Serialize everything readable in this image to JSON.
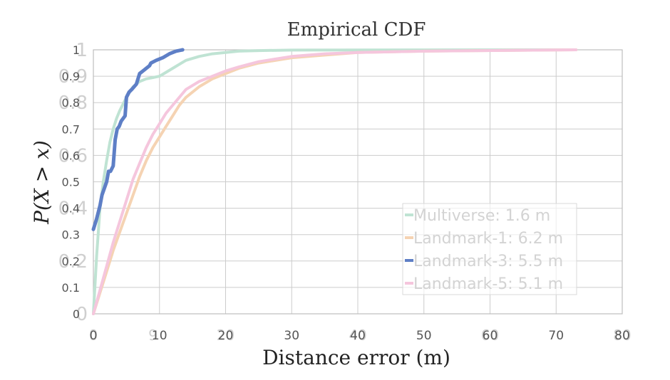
{
  "chart_data": {
    "type": "line",
    "title": "Empirical CDF",
    "xlabel": "Distance error (m)",
    "ylabel": "P(X > x)",
    "xlim": [
      0,
      80
    ],
    "ylim": [
      0,
      1
    ],
    "x_ticks": [
      "0",
      "10",
      "20",
      "30",
      "40",
      "50",
      "60",
      "70",
      "80"
    ],
    "y_ticks": [
      "0",
      "0.1",
      "0.2",
      "0.3",
      "0.4",
      "0.5",
      "0.6",
      "0.7",
      "0.8",
      "0.9",
      "1"
    ],
    "ghost_x_ticks": [
      "0",
      "9",
      "20",
      "40",
      "60",
      "80"
    ],
    "ghost_y_ticks": [
      "0",
      "0.2",
      "0.4",
      "0.6",
      "0.8",
      "0.9",
      "1"
    ],
    "grid": true,
    "legend_position": "lower-right",
    "series": [
      {
        "name": "Multiverse: 1.6 m",
        "color": "#bfe3d3",
        "x": [
          0,
          0.5,
          1,
          1.5,
          2,
          2.5,
          3,
          3.5,
          4,
          5,
          6,
          7,
          8,
          9,
          10,
          12,
          14,
          16,
          18,
          20,
          22,
          25,
          30,
          73
        ],
        "y": [
          0,
          0.22,
          0.4,
          0.5,
          0.58,
          0.65,
          0.7,
          0.74,
          0.77,
          0.82,
          0.86,
          0.88,
          0.89,
          0.895,
          0.9,
          0.93,
          0.96,
          0.975,
          0.985,
          0.99,
          0.995,
          0.997,
          0.999,
          1
        ]
      },
      {
        "name": "Landmark-1: 6.2 m",
        "color": "#f5d3b3",
        "x": [
          0,
          1,
          2,
          3,
          4,
          5,
          6,
          7,
          8,
          9,
          10,
          11,
          12,
          13,
          14,
          16,
          18,
          20,
          22,
          25,
          30,
          35,
          40,
          50,
          73
        ],
        "y": [
          0,
          0.08,
          0.16,
          0.24,
          0.31,
          0.38,
          0.45,
          0.52,
          0.58,
          0.63,
          0.67,
          0.71,
          0.75,
          0.79,
          0.82,
          0.86,
          0.89,
          0.91,
          0.93,
          0.95,
          0.97,
          0.98,
          0.99,
          0.995,
          1
        ]
      },
      {
        "name": "Landmark-3: 5.5 m",
        "color": "#5e7fc6",
        "x": [
          0,
          0.5,
          1,
          1.3,
          2,
          2.3,
          2.6,
          3.0,
          3.3,
          3.6,
          3.9,
          4.2,
          4.8,
          5.0,
          5.4,
          5.8,
          6.5,
          7.0,
          7.5,
          8.5,
          8.7,
          9.5,
          10.5,
          11.5,
          12.5,
          13.5
        ],
        "y": [
          0.32,
          0.36,
          0.41,
          0.45,
          0.5,
          0.54,
          0.54,
          0.56,
          0.66,
          0.7,
          0.71,
          0.73,
          0.75,
          0.82,
          0.84,
          0.85,
          0.87,
          0.91,
          0.92,
          0.94,
          0.95,
          0.96,
          0.97,
          0.985,
          0.995,
          1
        ]
      },
      {
        "name": "Landmark-5: 5.1 m",
        "color": "#f5c6dd",
        "x": [
          0,
          1,
          2,
          3,
          4,
          5,
          6,
          7,
          8,
          9,
          10,
          11,
          12,
          13,
          14,
          16,
          18,
          20,
          22,
          25,
          30,
          35,
          40,
          50,
          73
        ],
        "y": [
          0,
          0.09,
          0.18,
          0.27,
          0.35,
          0.43,
          0.51,
          0.57,
          0.63,
          0.68,
          0.72,
          0.76,
          0.79,
          0.82,
          0.85,
          0.88,
          0.9,
          0.92,
          0.935,
          0.955,
          0.975,
          0.985,
          0.99,
          0.995,
          1
        ]
      }
    ]
  },
  "colors": {
    "grid": "#cccccc",
    "frame": "#bdbdbd",
    "tick_text": "#555555",
    "ghost_text": "#cfcfcf",
    "legend_text": "#d3d3d3",
    "legend_border": "#d9d9d9",
    "title_text": "#333333"
  }
}
